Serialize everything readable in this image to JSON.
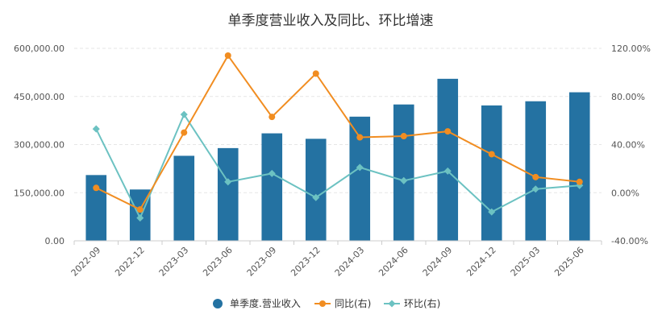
{
  "chart_data": {
    "type": "bar+line",
    "title": "单季度营业收入及同比、环比增速",
    "categories": [
      "2022-09",
      "2022-12",
      "2023-03",
      "2023-06",
      "2023-09",
      "2023-12",
      "2024-03",
      "2024-06",
      "2024-09",
      "2024-12",
      "2025-03",
      "2025-06"
    ],
    "left_axis": {
      "min": 0,
      "max": 600000,
      "ticks": [
        "0.00",
        "150,000.00",
        "300,000.00",
        "450,000.00",
        "600,000.00"
      ]
    },
    "right_axis": {
      "min": -40,
      "max": 120,
      "ticks": [
        "-40.00%",
        "0.00%",
        "40.00%",
        "80.00%",
        "120.00%"
      ]
    },
    "grid": true,
    "legend_position": "bottom",
    "series": [
      {
        "name": "单季度.营业收入",
        "type": "bar",
        "axis": "left",
        "color": "#2472A2",
        "values": [
          205000,
          160000,
          265000,
          289000,
          335000,
          318000,
          387000,
          425000,
          505000,
          422000,
          435000,
          463000
        ]
      },
      {
        "name": "同比(右)",
        "type": "line",
        "axis": "right",
        "color": "#F18D21",
        "values": [
          4,
          -14,
          50,
          114,
          63,
          99,
          46,
          47,
          51,
          32,
          13,
          9
        ]
      },
      {
        "name": "环比(右)",
        "type": "line",
        "axis": "right",
        "color": "#6CC2C2",
        "values": [
          53,
          -21,
          65,
          9,
          16,
          -4,
          21,
          10,
          18,
          -16,
          3,
          6
        ]
      }
    ]
  }
}
